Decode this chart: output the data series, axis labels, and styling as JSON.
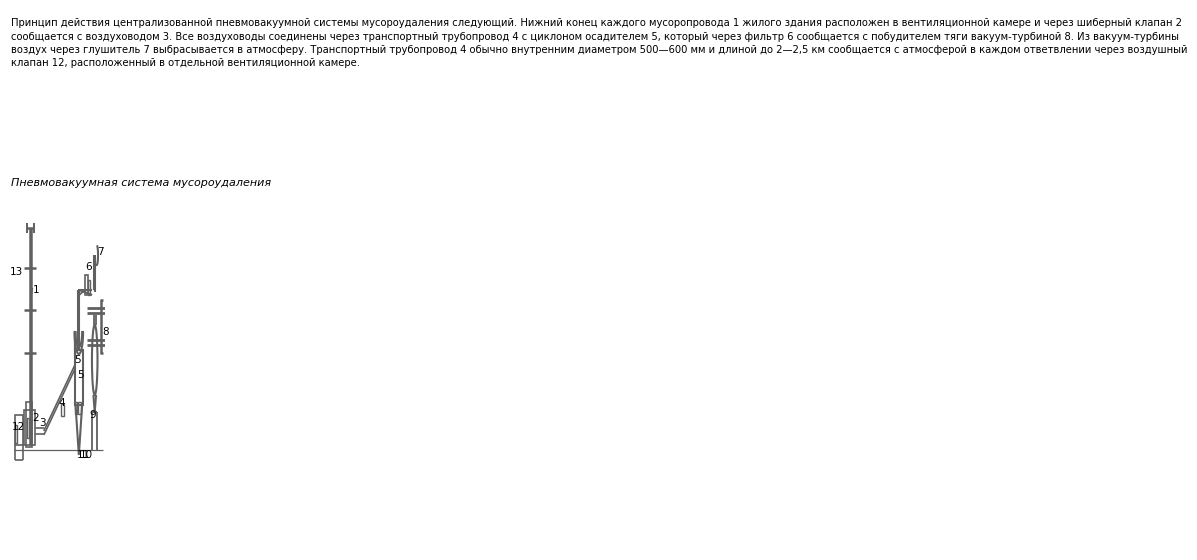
{
  "title_text": "Пневмовакуумная система мусороудаления",
  "description": "Принцип действия централизованной пневмовакуумной системы мусороудаления следующий. Нижний конец каждого мусоропровода 1 жилого здания расположен в вентиляционной камере и через шиберный клапан 2\nсообщается с воздуховодом 3. Все воздуховоды соединены через транспортный трубопровод 4 с циклоном осадителем 5, который через фильтр 6 сообщается с побудителем тяги вакуум-турбиной 8. Из вакуум-турбины\nвоздух через глушитель 7 выбрасывается в атмосферу. Транспортный трубопровод 4 обычно внутренним диаметром 500—600 мм и длиной до 2—2,5 км сообщается с атмосферой в каждом ответвлении через воздушный\nклапан 12, расположенный в отдельной вентиляционной камере.",
  "bg_color": "#ffffff",
  "line_color": "#606060",
  "text_color": "#000000"
}
